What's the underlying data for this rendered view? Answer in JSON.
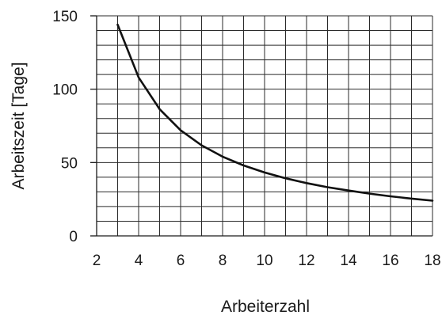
{
  "chart_data": {
    "type": "line",
    "title": "",
    "xlabel": "Arbeiterzahl",
    "ylabel": "Arbeitszeit [Tage]",
    "xlim": [
      2,
      18
    ],
    "ylim": [
      0,
      150
    ],
    "xticks": [
      2,
      4,
      6,
      8,
      10,
      12,
      14,
      16,
      18
    ],
    "yticks": [
      0,
      50,
      100,
      150
    ],
    "x_minor_step": 1,
    "y_minor_step": 10,
    "grid": true,
    "series": [
      {
        "x": [
          3,
          4,
          5,
          6,
          7,
          8,
          9,
          10,
          11,
          12,
          13,
          14,
          15,
          16,
          17,
          18
        ],
        "y": [
          144,
          108,
          86.4,
          72,
          61.7,
          54,
          48,
          43.2,
          39.3,
          36,
          33.2,
          30.9,
          28.8,
          27,
          25.4,
          24
        ]
      }
    ],
    "colors": {
      "line": "#111111",
      "grid": "#2a2a2a",
      "text": "#1a1a1a"
    }
  }
}
